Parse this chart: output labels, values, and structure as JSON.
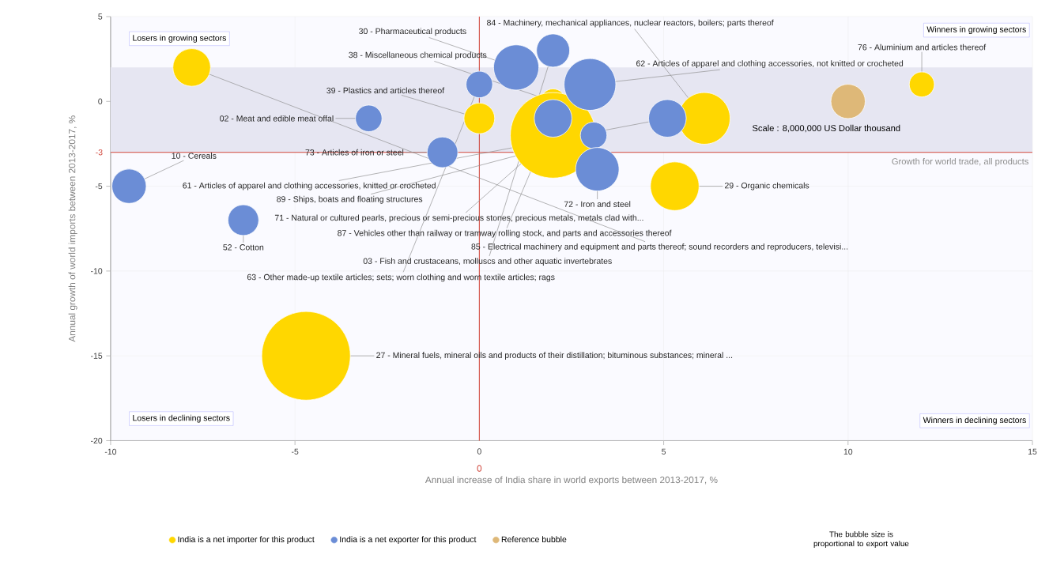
{
  "chart_data": {
    "type": "bubble",
    "xlabel": "Annual increase of India share in world exports between 2013-2017, %",
    "ylabel": "Annual growth of world imports between 2013-2017, %",
    "xlim": [
      -10,
      15
    ],
    "ylim": [
      -20,
      5
    ],
    "xticks": [
      -10,
      -5,
      0,
      5,
      10,
      15
    ],
    "yticks": [
      -20,
      -15,
      -10,
      -5,
      0,
      5
    ],
    "grid": true,
    "legend": "bottom",
    "marker": "circle",
    "series": [
      {
        "name": "India is a net importer for this product",
        "color": "#ffd700",
        "x": [
          -7.8,
          0,
          2,
          2,
          6.1,
          5.3,
          12,
          -4.7
        ],
        "values": [
          2,
          -1,
          0,
          -2,
          -1,
          -5,
          1,
          -15
        ],
        "sizes": [
          0.18,
          0.12,
          0.08,
          0.93,
          0.34,
          0.3,
          0.08,
          1
        ]
      },
      {
        "name": "India is a net exporter for this product",
        "color": "#6b8dd6",
        "x": [
          -3,
          -9.5,
          -6.4,
          -1,
          0,
          1,
          2,
          2,
          3,
          3.1,
          3.2,
          5.1
        ],
        "values": [
          -1,
          -5,
          -7,
          -3,
          1,
          2,
          3,
          -1,
          1,
          -2,
          -4,
          -1
        ],
        "sizes": [
          0.09,
          0.15,
          0.12,
          0.12,
          0.09,
          0.26,
          0.14,
          0.18,
          0.34,
          0.09,
          0.24,
          0.18
        ]
      },
      {
        "name": "Reference bubble",
        "color": "#deb878",
        "x": [
          10
        ],
        "values": [
          0
        ],
        "sizes": [
          0.15
        ]
      }
    ],
    "ref_lines": [
      {
        "axis": "x",
        "value": 0,
        "label": "0",
        "color": "#d0453a"
      },
      {
        "axis": "y",
        "value": -3,
        "label": "Growth for world trade, all products",
        "color": "#d0453a"
      }
    ],
    "bands": [
      {
        "axis": "y",
        "from": -3,
        "to": 2,
        "color": "#e6e6f2"
      }
    ],
    "annotations": [
      "Losers in growing sectors",
      "Winners in growing sectors",
      "Losers in declining sectors",
      "Winners in declining sectors",
      "Scale : 8,000,000 US Dollar thousand",
      "The bubble size is proportional to export value",
      {
        "text": "02 - Meat and edible meat offal",
        "x": -3,
        "y": -1
      },
      {
        "text": "10 - Cereals",
        "x": -9.5,
        "y": -5
      },
      {
        "text": "52 - Cotton",
        "x": -6.4,
        "y": -7
      },
      {
        "text": "73 - Articles of iron or steel",
        "x": -1,
        "y": -3
      },
      {
        "text": "39 - Plastics and articles thereof",
        "x": 0,
        "y": -1
      },
      {
        "text": "30 - Pharmaceutical products",
        "x": 1,
        "y": 2
      },
      {
        "text": "38 - Miscellaneous chemical products",
        "x": 2,
        "y": 0
      },
      {
        "text": "84 - Machinery, mechanical appliances, nuclear reactors, boilers; parts thereof",
        "x": 6.1,
        "y": -1
      },
      {
        "text": "62 - Articles of apparel and clothing accessories, not knitted or crocheted",
        "x": 3,
        "y": 1
      },
      {
        "text": "76 - Aluminium and articles thereof",
        "x": 12,
        "y": 1
      },
      {
        "text": "29 - Organic chemicals",
        "x": 5.3,
        "y": -5
      },
      {
        "text": "72 - Iron and steel",
        "x": 3.2,
        "y": -4
      },
      {
        "text": "61 - Articles of apparel and clothing accessories, knitted or crocheted",
        "x": 5.1,
        "y": -1
      },
      {
        "text": "89 - Ships, boats and floating structures",
        "x": 3.1,
        "y": -2
      },
      {
        "text": "71 - Natural or cultured pearls, precious or semi-precious stones, precious metals, metals clad with...",
        "x": 2,
        "y": -2
      },
      {
        "text": "87 - Vehicles other than railway or tramway rolling stock, and parts and accessories thereof",
        "x": 2,
        "y": -1
      },
      {
        "text": "85 - Electrical machinery and equipment and parts thereof; sound recorders and reproducers, televisi...",
        "x": -7.8,
        "y": 2
      },
      {
        "text": "03 - Fish and crustaceans, molluscs and other aquatic invertebrates",
        "x": 2,
        "y": 3
      },
      {
        "text": "63 - Other made-up textile articles; sets; worn clothing and worn textile articles; rags",
        "x": 0,
        "y": 1
      },
      {
        "text": "27 - Mineral fuels, mineral oils and products of their distillation; bituminous substances; mineral ...",
        "x": -4.7,
        "y": -15
      },
      "-3"
    ]
  }
}
